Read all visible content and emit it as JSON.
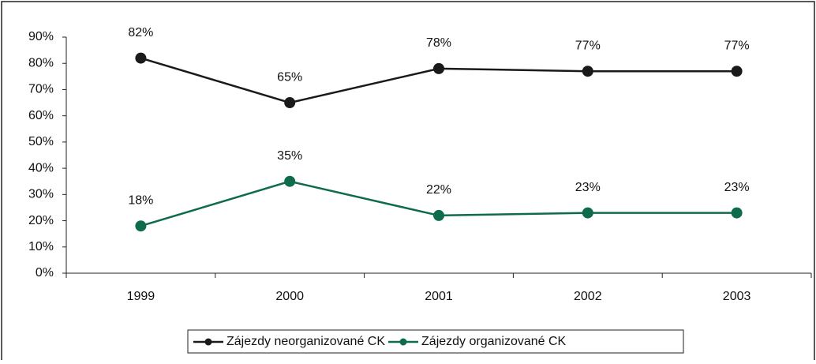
{
  "chart_data": {
    "type": "line",
    "categories": [
      "1999",
      "2000",
      "2001",
      "2002",
      "2003"
    ],
    "series": [
      {
        "name": "Zájezdy neorganizované CK",
        "color": "#1a1a1a",
        "values": [
          82,
          65,
          78,
          77,
          77
        ],
        "value_labels": [
          "82%",
          "65%",
          "78%",
          "77%",
          "77%"
        ]
      },
      {
        "name": "Zájezdy organizované CK",
        "color": "#0e6b4e",
        "values": [
          18,
          35,
          22,
          23,
          23
        ],
        "value_labels": [
          "18%",
          "35%",
          "22%",
          "23%",
          "23%"
        ]
      }
    ],
    "ylim": [
      0,
      90
    ],
    "yticks": [
      {
        "value": 0,
        "label": "0%"
      },
      {
        "value": 10,
        "label": "10%"
      },
      {
        "value": 20,
        "label": "20%"
      },
      {
        "value": 30,
        "label": "30%"
      },
      {
        "value": 40,
        "label": "40%"
      },
      {
        "value": 50,
        "label": "50%"
      },
      {
        "value": 60,
        "label": "60%"
      },
      {
        "value": 70,
        "label": "70%"
      },
      {
        "value": 80,
        "label": "80%"
      },
      {
        "value": 90,
        "label": "90%"
      }
    ],
    "legend": "bottom"
  }
}
